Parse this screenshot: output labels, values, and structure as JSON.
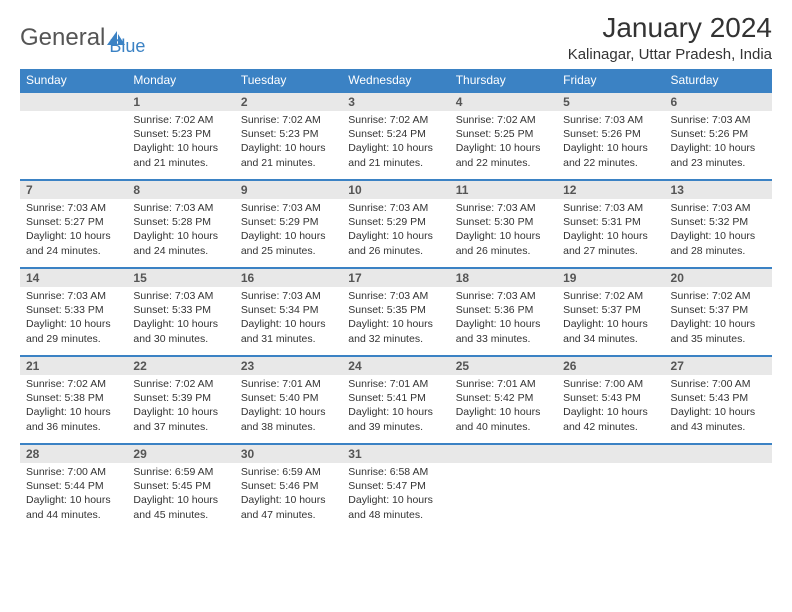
{
  "brand": {
    "part1": "General",
    "part2": "Blue"
  },
  "title": "January 2024",
  "location": "Kalinagar, Uttar Pradesh, India",
  "colors": {
    "header_bg": "#3b82c4",
    "daynum_bg": "#e8e8e8",
    "text": "#333333"
  },
  "weekdays": [
    "Sunday",
    "Monday",
    "Tuesday",
    "Wednesday",
    "Thursday",
    "Friday",
    "Saturday"
  ],
  "weeks": [
    [
      null,
      {
        "n": "1",
        "sr": "7:02 AM",
        "ss": "5:23 PM",
        "dl": "10 hours and 21 minutes."
      },
      {
        "n": "2",
        "sr": "7:02 AM",
        "ss": "5:23 PM",
        "dl": "10 hours and 21 minutes."
      },
      {
        "n": "3",
        "sr": "7:02 AM",
        "ss": "5:24 PM",
        "dl": "10 hours and 21 minutes."
      },
      {
        "n": "4",
        "sr": "7:02 AM",
        "ss": "5:25 PM",
        "dl": "10 hours and 22 minutes."
      },
      {
        "n": "5",
        "sr": "7:03 AM",
        "ss": "5:26 PM",
        "dl": "10 hours and 22 minutes."
      },
      {
        "n": "6",
        "sr": "7:03 AM",
        "ss": "5:26 PM",
        "dl": "10 hours and 23 minutes."
      }
    ],
    [
      {
        "n": "7",
        "sr": "7:03 AM",
        "ss": "5:27 PM",
        "dl": "10 hours and 24 minutes."
      },
      {
        "n": "8",
        "sr": "7:03 AM",
        "ss": "5:28 PM",
        "dl": "10 hours and 24 minutes."
      },
      {
        "n": "9",
        "sr": "7:03 AM",
        "ss": "5:29 PM",
        "dl": "10 hours and 25 minutes."
      },
      {
        "n": "10",
        "sr": "7:03 AM",
        "ss": "5:29 PM",
        "dl": "10 hours and 26 minutes."
      },
      {
        "n": "11",
        "sr": "7:03 AM",
        "ss": "5:30 PM",
        "dl": "10 hours and 26 minutes."
      },
      {
        "n": "12",
        "sr": "7:03 AM",
        "ss": "5:31 PM",
        "dl": "10 hours and 27 minutes."
      },
      {
        "n": "13",
        "sr": "7:03 AM",
        "ss": "5:32 PM",
        "dl": "10 hours and 28 minutes."
      }
    ],
    [
      {
        "n": "14",
        "sr": "7:03 AM",
        "ss": "5:33 PM",
        "dl": "10 hours and 29 minutes."
      },
      {
        "n": "15",
        "sr": "7:03 AM",
        "ss": "5:33 PM",
        "dl": "10 hours and 30 minutes."
      },
      {
        "n": "16",
        "sr": "7:03 AM",
        "ss": "5:34 PM",
        "dl": "10 hours and 31 minutes."
      },
      {
        "n": "17",
        "sr": "7:03 AM",
        "ss": "5:35 PM",
        "dl": "10 hours and 32 minutes."
      },
      {
        "n": "18",
        "sr": "7:03 AM",
        "ss": "5:36 PM",
        "dl": "10 hours and 33 minutes."
      },
      {
        "n": "19",
        "sr": "7:02 AM",
        "ss": "5:37 PM",
        "dl": "10 hours and 34 minutes."
      },
      {
        "n": "20",
        "sr": "7:02 AM",
        "ss": "5:37 PM",
        "dl": "10 hours and 35 minutes."
      }
    ],
    [
      {
        "n": "21",
        "sr": "7:02 AM",
        "ss": "5:38 PM",
        "dl": "10 hours and 36 minutes."
      },
      {
        "n": "22",
        "sr": "7:02 AM",
        "ss": "5:39 PM",
        "dl": "10 hours and 37 minutes."
      },
      {
        "n": "23",
        "sr": "7:01 AM",
        "ss": "5:40 PM",
        "dl": "10 hours and 38 minutes."
      },
      {
        "n": "24",
        "sr": "7:01 AM",
        "ss": "5:41 PM",
        "dl": "10 hours and 39 minutes."
      },
      {
        "n": "25",
        "sr": "7:01 AM",
        "ss": "5:42 PM",
        "dl": "10 hours and 40 minutes."
      },
      {
        "n": "26",
        "sr": "7:00 AM",
        "ss": "5:43 PM",
        "dl": "10 hours and 42 minutes."
      },
      {
        "n": "27",
        "sr": "7:00 AM",
        "ss": "5:43 PM",
        "dl": "10 hours and 43 minutes."
      }
    ],
    [
      {
        "n": "28",
        "sr": "7:00 AM",
        "ss": "5:44 PM",
        "dl": "10 hours and 44 minutes."
      },
      {
        "n": "29",
        "sr": "6:59 AM",
        "ss": "5:45 PM",
        "dl": "10 hours and 45 minutes."
      },
      {
        "n": "30",
        "sr": "6:59 AM",
        "ss": "5:46 PM",
        "dl": "10 hours and 47 minutes."
      },
      {
        "n": "31",
        "sr": "6:58 AM",
        "ss": "5:47 PM",
        "dl": "10 hours and 48 minutes."
      },
      null,
      null,
      null
    ]
  ],
  "labels": {
    "sunrise": "Sunrise:",
    "sunset": "Sunset:",
    "daylight": "Daylight:"
  }
}
